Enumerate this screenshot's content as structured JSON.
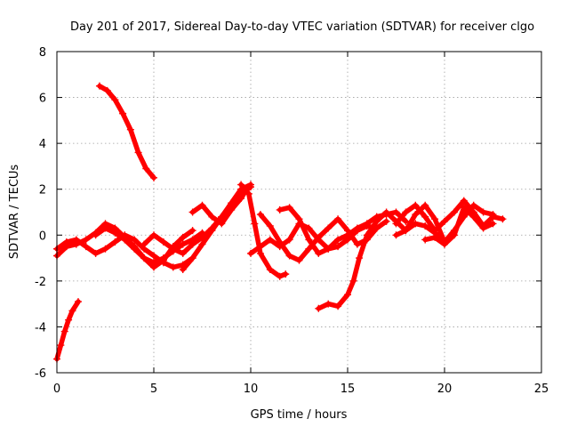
{
  "chart_data": {
    "type": "scatter",
    "title": "Day 201 of 2017, Sidereal Day-to-day VTEC variation (SDTVAR) for receiver clgo",
    "xlabel": "GPS time / hours",
    "ylabel": "SDTVAR / TECUs",
    "xlim": [
      0,
      25
    ],
    "ylim": [
      -6,
      8
    ],
    "x_ticks": [
      0,
      5,
      10,
      15,
      20,
      25
    ],
    "y_ticks": [
      -6,
      -4,
      -2,
      0,
      2,
      4,
      6,
      8
    ],
    "x_tick_labels": [
      "0",
      "5",
      "10",
      "15",
      "20",
      "25"
    ],
    "y_tick_labels": [
      "-6",
      "-4",
      "-2",
      "0",
      "2",
      "4",
      "6",
      "8"
    ],
    "grid": true,
    "marker": "+",
    "color": "#ff0000",
    "series": [
      {
        "name": "s1",
        "x": [
          0.0,
          0.2,
          0.4,
          0.6,
          0.8,
          1.1
        ],
        "y": [
          -5.4,
          -4.8,
          -4.2,
          -3.7,
          -3.3,
          -2.9
        ]
      },
      {
        "name": "s2",
        "x": [
          2.2,
          2.6,
          3.0,
          3.4,
          3.8,
          4.2,
          4.6,
          5.0
        ],
        "y": [
          6.5,
          6.3,
          5.9,
          5.3,
          4.6,
          3.6,
          2.9,
          2.5
        ]
      },
      {
        "name": "s3",
        "x": [
          0.0,
          0.5,
          1.0,
          1.5,
          2.0,
          2.5,
          3.0,
          3.5,
          4.0,
          4.5,
          5.0,
          5.5,
          6.0,
          6.5,
          7.0,
          7.5
        ],
        "y": [
          -0.9,
          -0.5,
          -0.4,
          -0.2,
          0.1,
          0.5,
          0.3,
          -0.1,
          -0.5,
          -1.0,
          -1.2,
          -1.0,
          -0.7,
          -0.4,
          -0.2,
          0.1
        ]
      },
      {
        "name": "s4",
        "x": [
          0.0,
          0.5,
          1.0,
          1.5,
          2.0,
          2.5,
          3.0,
          3.5,
          4.0,
          4.5,
          5.0,
          5.5,
          6.0,
          6.5,
          7.0
        ],
        "y": [
          -0.6,
          -0.3,
          -0.2,
          -0.5,
          -0.8,
          -0.6,
          -0.3,
          0.0,
          -0.2,
          -0.6,
          -0.9,
          -1.2,
          -1.4,
          -1.3,
          -1.0
        ]
      },
      {
        "name": "s5",
        "x": [
          2.0,
          2.5,
          3.0,
          3.5,
          4.0,
          4.5,
          5.0,
          5.5,
          6.0,
          6.5,
          7.0
        ],
        "y": [
          0.0,
          0.3,
          0.1,
          -0.2,
          -0.6,
          -1.0,
          -1.4,
          -1.1,
          -0.5,
          -0.1,
          0.2
        ]
      },
      {
        "name": "s6",
        "x": [
          4.5,
          5.0,
          5.5,
          6.0,
          6.5,
          7.0,
          7.5,
          8.0,
          8.5,
          9.0,
          9.5,
          10.0
        ],
        "y": [
          -0.4,
          0.0,
          -0.3,
          -0.6,
          -0.8,
          -0.4,
          -0.1,
          0.3,
          0.8,
          1.3,
          1.8,
          2.1
        ]
      },
      {
        "name": "s7",
        "x": [
          6.5,
          7.0,
          7.5,
          8.0,
          8.5,
          9.0,
          9.5,
          10.0
        ],
        "y": [
          -1.5,
          -1.0,
          -0.4,
          0.2,
          0.8,
          1.4,
          2.0,
          2.2
        ]
      },
      {
        "name": "s8",
        "x": [
          7.0,
          7.5,
          8.0,
          8.5,
          9.0,
          9.5,
          9.8
        ],
        "y": [
          1.0,
          1.3,
          0.8,
          0.5,
          1.1,
          1.6,
          2.0
        ]
      },
      {
        "name": "s9",
        "x": [
          9.5,
          9.9,
          10.2,
          10.5,
          11.0,
          11.5,
          11.8
        ],
        "y": [
          2.2,
          1.8,
          0.5,
          -0.8,
          -1.5,
          -1.8,
          -1.7
        ]
      },
      {
        "name": "s10",
        "x": [
          10.0,
          10.5,
          11.0,
          11.5,
          12.0,
          12.5,
          13.0,
          13.5,
          14.0,
          14.5,
          15.0,
          15.5,
          16.0,
          16.5,
          17.0
        ],
        "y": [
          -0.8,
          -0.5,
          -0.2,
          -0.5,
          -0.2,
          0.5,
          0.3,
          -0.2,
          -0.6,
          -0.5,
          -0.2,
          0.2,
          0.4,
          0.3,
          0.6
        ]
      },
      {
        "name": "s11",
        "x": [
          10.5,
          11.0,
          11.5,
          12.0,
          12.5,
          13.0,
          13.5,
          14.0,
          14.5,
          15.0,
          15.5,
          16.0,
          16.5
        ],
        "y": [
          0.9,
          0.4,
          -0.3,
          -0.9,
          -1.1,
          -0.6,
          -0.1,
          0.3,
          0.7,
          0.2,
          -0.4,
          -0.2,
          0.3
        ]
      },
      {
        "name": "s12",
        "x": [
          11.5,
          12.0,
          12.5,
          13.0,
          13.5,
          14.0,
          14.5,
          15.0,
          15.5,
          16.0,
          16.5,
          17.0,
          17.5,
          18.0
        ],
        "y": [
          1.1,
          1.2,
          0.7,
          -0.2,
          -0.8,
          -0.6,
          -0.2,
          0.0,
          0.3,
          0.5,
          0.8,
          0.9,
          1.0,
          0.6
        ]
      },
      {
        "name": "s13",
        "x": [
          13.5,
          14.0,
          14.5,
          15.0,
          15.3,
          15.6,
          16.0,
          16.5,
          17.0,
          17.5,
          18.0,
          18.5,
          19.0,
          19.5,
          20.0
        ],
        "y": [
          -3.2,
          -3.0,
          -3.1,
          -2.6,
          -2.0,
          -1.0,
          0.0,
          0.6,
          1.0,
          0.6,
          0.2,
          0.9,
          1.3,
          0.7,
          -0.3
        ]
      },
      {
        "name": "s14",
        "x": [
          17.5,
          18.0,
          18.5,
          19.0,
          19.5,
          20.0,
          20.5,
          21.0,
          21.5,
          22.0,
          22.5,
          23.0
        ],
        "y": [
          0.5,
          1.0,
          1.3,
          0.8,
          0.2,
          0.6,
          1.0,
          1.5,
          1.0,
          0.4,
          0.8,
          0.7
        ]
      },
      {
        "name": "s15",
        "x": [
          19.0,
          19.5,
          20.0,
          20.5,
          21.0,
          21.5,
          22.0,
          22.5
        ],
        "y": [
          -0.2,
          -0.1,
          -0.4,
          0.0,
          1.2,
          0.8,
          0.3,
          0.5
        ]
      },
      {
        "name": "s16",
        "x": [
          17.5,
          18.0,
          18.5,
          19.0,
          19.5,
          20.0,
          20.5,
          21.0,
          21.5,
          22.0,
          22.5
        ],
        "y": [
          0.0,
          0.2,
          0.5,
          0.4,
          0.1,
          -0.3,
          0.2,
          0.8,
          1.3,
          1.0,
          0.9
        ]
      }
    ]
  }
}
